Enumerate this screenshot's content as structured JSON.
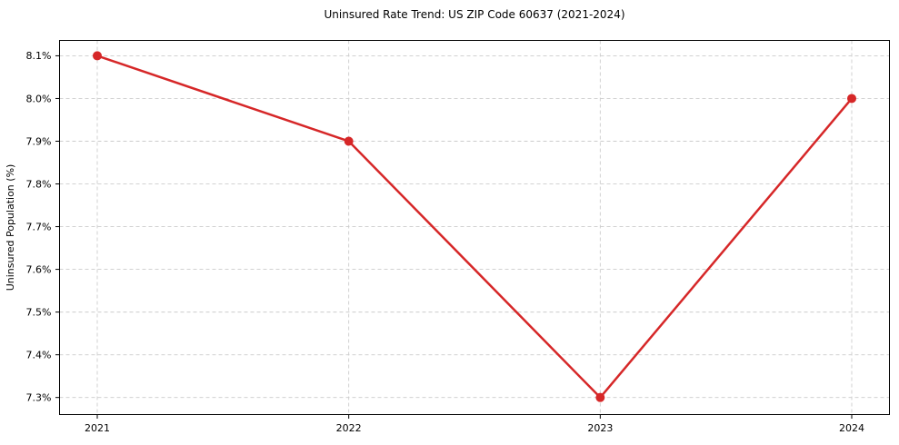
{
  "figure": {
    "background_color": "#ffffff"
  },
  "chart_data": {
    "type": "line",
    "title": "Uninsured Rate Trend: US ZIP Code 60637 (2021-2024)",
    "xlabel": "",
    "ylabel": "Uninsured Population (%)",
    "x": [
      2021,
      2022,
      2023,
      2024
    ],
    "x_tick_labels": [
      "2021",
      "2022",
      "2023",
      "2024"
    ],
    "y_ticks": [
      7.3,
      7.4,
      7.5,
      7.6,
      7.7,
      7.8,
      7.9,
      8.0,
      8.1
    ],
    "y_tick_labels": [
      "7.3%",
      "7.4%",
      "7.5%",
      "7.6%",
      "7.7%",
      "7.8%",
      "7.9%",
      "8.0%",
      "8.1%"
    ],
    "series": [
      {
        "name": "Uninsured Population (%)",
        "values": [
          8.1,
          7.9,
          7.3,
          8.0
        ],
        "color": "#d62728",
        "marker": "circle",
        "line_width": 2.5,
        "marker_radius": 5
      }
    ],
    "xlim": [
      2020.85,
      2024.15
    ],
    "ylim": [
      7.26,
      8.136
    ],
    "grid": true,
    "grid_style": "dashed",
    "grid_color": "#cccccc",
    "axis_color": "#000000",
    "legend_position": "none"
  }
}
